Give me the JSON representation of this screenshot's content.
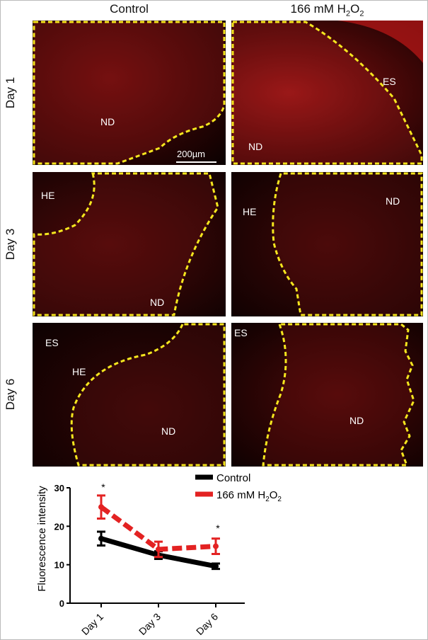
{
  "columns": [
    "Control",
    "166 mM H2O2"
  ],
  "rows": [
    "Day 1",
    "Day 3",
    "Day 6"
  ],
  "panels": {
    "d1_control": {
      "labels": [
        "ND"
      ],
      "scale_bar": "200µm"
    },
    "d1_h2o2": {
      "labels": [
        "ES",
        "ND"
      ]
    },
    "d3_control": {
      "labels": [
        "HE",
        "ND"
      ]
    },
    "d3_h2o2": {
      "labels": [
        "HE",
        "ND"
      ]
    },
    "d6_control": {
      "labels": [
        "ES",
        "HE",
        "ND"
      ]
    },
    "d6_h2o2": {
      "labels": [
        "ES",
        "ND"
      ]
    }
  },
  "colors": {
    "outline": "#f5e61e",
    "control": "#000000",
    "h2o2": "#e32222",
    "fluorescence": "#c81414"
  },
  "chart_data": {
    "type": "line",
    "categories": [
      "Day 1",
      "Day 3",
      "Day 6"
    ],
    "ylabel": "Fluorescence intensity",
    "ylim": [
      0,
      30
    ],
    "yticks": [
      0,
      10,
      20,
      30
    ],
    "legend_position": "top-right",
    "series": [
      {
        "name": "Control",
        "values": [
          16.8,
          12.5,
          9.6
        ],
        "errors": [
          1.8,
          1.0,
          0.7
        ],
        "color": "#000000",
        "style": "solid"
      },
      {
        "name": "166 mM H2O2",
        "values": [
          25.0,
          14.0,
          14.8
        ],
        "errors": [
          3.0,
          2.0,
          2.0
        ],
        "color": "#e32222",
        "style": "dashed"
      }
    ],
    "annotations": [
      {
        "category": "Day 1",
        "text": "*"
      },
      {
        "category": "Day 6",
        "text": "*"
      }
    ]
  }
}
